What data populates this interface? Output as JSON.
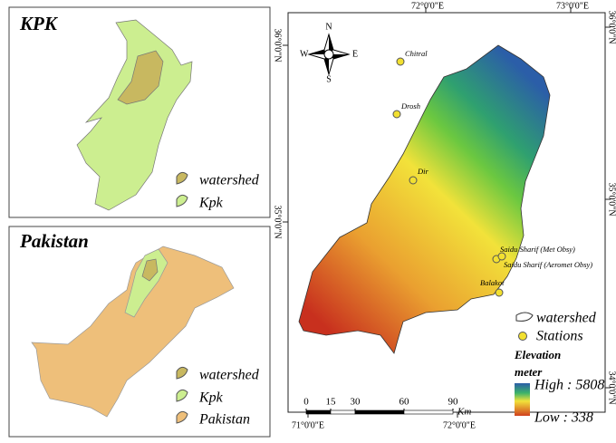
{
  "kpk_panel": {
    "title": "KPK",
    "legend": [
      "watershed",
      "Kpk"
    ]
  },
  "pakistan_panel": {
    "title": "Pakistan",
    "legend": [
      "watershed",
      "Kpk",
      "Pakistan"
    ]
  },
  "main_map": {
    "top_labels": [
      "72°0'0\"E",
      "73°0'0\"E"
    ],
    "bottom_labels": [
      "71°0'0\"E",
      "72°0'0\"E"
    ],
    "left_labels": [
      "36°0'0\"N",
      "35°0'0\"N"
    ],
    "right_labels": [
      "36°0'0\"N",
      "35°0'0\"N",
      "34°0'0\"N"
    ],
    "compass": {
      "n": "N",
      "s": "S",
      "e": "E",
      "w": "W"
    },
    "stations": [
      "Chitral",
      "Drosh",
      "Dir",
      "Saidu Sharif (Met Obsy)",
      "Saidu Sharif (Aeromet Obsy)",
      "Balakot"
    ],
    "legend": {
      "watershed": "watershed",
      "stations": "Stations",
      "elevation_title": "Elevation",
      "elevation_unit": "meter",
      "high": "High : 5808",
      "low": "Low : 338"
    },
    "scale": {
      "ticks": [
        0,
        15,
        30,
        60,
        90
      ],
      "unit": "Km"
    }
  }
}
